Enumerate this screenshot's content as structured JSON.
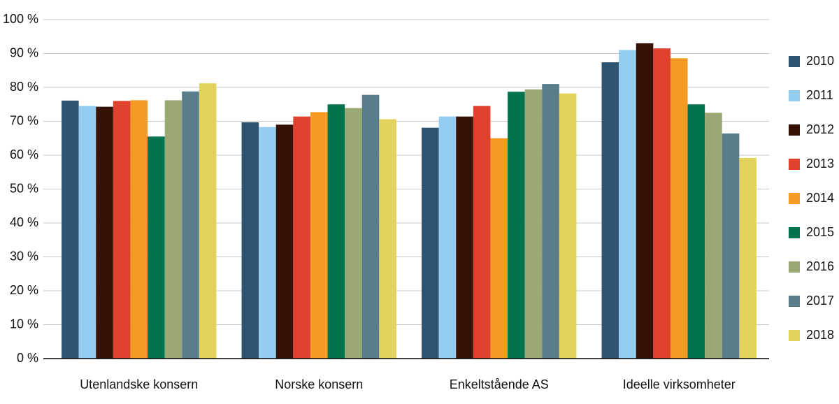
{
  "chart_data": {
    "type": "bar",
    "categories": [
      "Utenlandske konsern",
      "Norske konsern",
      "Enkeltstående AS",
      "Ideelle virksomheter"
    ],
    "series": [
      {
        "name": "2010",
        "color": "#2f5472",
        "values": [
          76.1,
          69.7,
          68.1,
          87.4
        ]
      },
      {
        "name": "2011",
        "color": "#95cdf0",
        "values": [
          74.5,
          68.3,
          71.4,
          91
        ]
      },
      {
        "name": "2012",
        "color": "#361106",
        "values": [
          74.3,
          69,
          71.4,
          93
        ]
      },
      {
        "name": "2013",
        "color": "#e0412c",
        "values": [
          76,
          71.4,
          74.5,
          91.5
        ]
      },
      {
        "name": "2014",
        "color": "#f59a23",
        "values": [
          76.2,
          72.7,
          65,
          88.6
        ]
      },
      {
        "name": "2015",
        "color": "#02744d",
        "values": [
          65.5,
          75,
          78.7,
          75
        ]
      },
      {
        "name": "2016",
        "color": "#9aa874",
        "values": [
          76.2,
          73.9,
          79.4,
          72.5
        ]
      },
      {
        "name": "2017",
        "color": "#5a7d8c",
        "values": [
          78.8,
          77.8,
          81,
          66.4
        ]
      },
      {
        "name": "2018",
        "color": "#e3d35c",
        "values": [
          81.2,
          70.6,
          78.2,
          59.2
        ]
      }
    ],
    "ylim": [
      0,
      100
    ],
    "yticks": [
      {
        "value": 0,
        "label": "0 %"
      },
      {
        "value": 10,
        "label": "10 %"
      },
      {
        "value": 20,
        "label": "20 %"
      },
      {
        "value": 30,
        "label": "30 %"
      },
      {
        "value": 40,
        "label": "40 %"
      },
      {
        "value": 50,
        "label": "50 %"
      },
      {
        "value": 60,
        "label": "60 %"
      },
      {
        "value": 70,
        "label": "70 %"
      },
      {
        "value": 80,
        "label": "80 %"
      },
      {
        "value": 90,
        "label": "90 %"
      },
      {
        "value": 100,
        "label": "100 %"
      }
    ],
    "grid": true,
    "legend": "right"
  }
}
